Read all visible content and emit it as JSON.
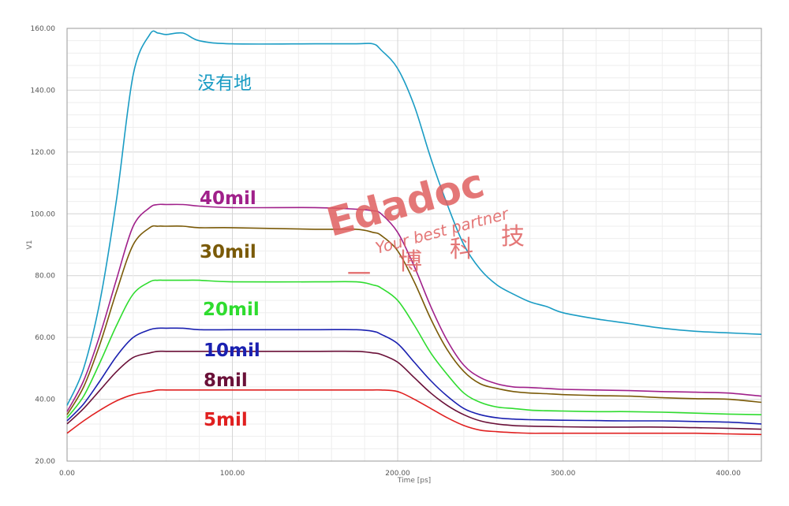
{
  "chart_data": {
    "type": "line",
    "xlabel": "Time [ps]",
    "ylabel": "V1",
    "xlim": [
      0,
      420
    ],
    "ylim": [
      20,
      160
    ],
    "x_ticks": [
      "0.00",
      "100.00",
      "200.00",
      "300.00",
      "400.00"
    ],
    "y_ticks": [
      "20.00",
      "40.00",
      "60.00",
      "80.00",
      "100.00",
      "120.00",
      "140.00",
      "160.00"
    ],
    "x": [
      0,
      10,
      20,
      30,
      40,
      50,
      55,
      60,
      70,
      80,
      100,
      150,
      175,
      185,
      190,
      200,
      210,
      220,
      230,
      240,
      250,
      260,
      270,
      280,
      290,
      300,
      320,
      340,
      360,
      380,
      400,
      420
    ],
    "series": [
      {
        "name": "没有地",
        "color": "#1a9cc4",
        "values": [
          38,
          50,
          72,
          105,
          145,
          158,
          158.5,
          158,
          158.5,
          156,
          155,
          155,
          155,
          155,
          153,
          147,
          135,
          118,
          103,
          90,
          82,
          77,
          74,
          71.5,
          70,
          68,
          66,
          64.5,
          63,
          62,
          61.5,
          61
        ]
      },
      {
        "name": "40mil",
        "color": "#a0208a",
        "values": [
          36,
          46,
          61,
          79,
          96,
          102,
          103,
          103,
          103,
          102.5,
          102,
          102,
          101.5,
          101,
          100,
          94,
          83,
          70,
          59,
          51,
          47,
          45,
          44,
          43.8,
          43.5,
          43.2,
          43,
          42.8,
          42.5,
          42.3,
          42,
          41
        ]
      },
      {
        "name": "30mil",
        "color": "#7a5a08",
        "values": [
          35,
          44,
          58,
          75,
          90,
          95.5,
          96,
          96,
          96,
          95.5,
          95.5,
          95,
          95,
          94,
          93,
          88,
          78,
          66,
          56,
          49,
          45,
          43.5,
          42.5,
          42,
          41.8,
          41.5,
          41.2,
          41,
          40.5,
          40.2,
          40,
          39
        ]
      },
      {
        "name": "20mil",
        "color": "#2fdc2f",
        "values": [
          34,
          41,
          52,
          64,
          74,
          78,
          78.5,
          78.5,
          78.5,
          78.5,
          78,
          78,
          78,
          77,
          76,
          72,
          64,
          55,
          48,
          42,
          39,
          37.5,
          37,
          36.5,
          36.3,
          36.2,
          36,
          36,
          35.8,
          35.5,
          35.2,
          35
        ]
      },
      {
        "name": "10mil",
        "color": "#1a20b0",
        "values": [
          33,
          38.5,
          46,
          54,
          60,
          62.5,
          63,
          63,
          63,
          62.5,
          62.5,
          62.5,
          62.5,
          62,
          61,
          58,
          52,
          46,
          41,
          37,
          35,
          34,
          33.6,
          33.4,
          33.3,
          33.2,
          33.1,
          33,
          33,
          32.8,
          32.6,
          32
        ]
      },
      {
        "name": "8mil",
        "color": "#6a1038",
        "values": [
          32,
          37,
          43,
          49,
          53.5,
          55,
          55.5,
          55.5,
          55.5,
          55.5,
          55.5,
          55.5,
          55.5,
          55,
          54.5,
          52,
          47,
          42,
          38,
          35,
          33,
          32,
          31.5,
          31.3,
          31.2,
          31.1,
          31,
          31,
          31,
          30.8,
          30.6,
          30.3
        ]
      },
      {
        "name": "5mil",
        "color": "#e02020",
        "values": [
          29,
          33,
          36.5,
          39.5,
          41.5,
          42.5,
          43,
          43,
          43,
          43,
          43,
          43,
          43,
          43,
          43,
          42.5,
          40,
          37,
          34,
          31.5,
          30,
          29.5,
          29.2,
          29,
          29,
          29,
          29,
          29,
          29,
          29,
          28.8,
          28.6
        ]
      }
    ],
    "labels": [
      {
        "text": "没有地",
        "series": 0,
        "cjk": true
      },
      {
        "text": "40mil",
        "series": 1
      },
      {
        "text": "30mil",
        "series": 2
      },
      {
        "text": "20mil",
        "series": 3
      },
      {
        "text": "10mil",
        "series": 4
      },
      {
        "text": "8mil",
        "series": 5
      },
      {
        "text": "5mil",
        "series": 6
      }
    ],
    "grid": true,
    "legend": "inline"
  },
  "watermark": {
    "brand": "Edadoc",
    "slogan": "Your best partner",
    "chars": [
      "一",
      "博",
      "科",
      "技"
    ],
    "color": "#e06060"
  }
}
